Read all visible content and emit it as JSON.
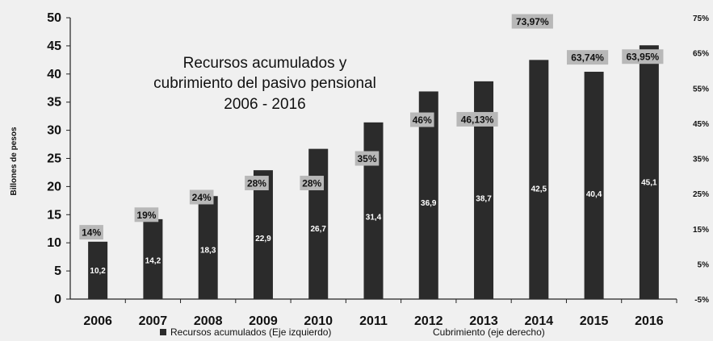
{
  "chart_data": {
    "type": "bar",
    "title_lines": [
      "Recursos acumulados y",
      "cubrimiento del pasivo pensional",
      "2006 - 2016"
    ],
    "ylabel": "Billones de pesos",
    "categories": [
      "2006",
      "2007",
      "2008",
      "2009",
      "2010",
      "2011",
      "2012",
      "2013",
      "2014",
      "2015",
      "2016"
    ],
    "series": [
      {
        "name": "Recursos acumulados (Eje izquierdo)",
        "axis": "left",
        "values": [
          10.2,
          14.2,
          18.3,
          22.9,
          26.7,
          31.4,
          36.9,
          38.7,
          42.5,
          40.4,
          45.1
        ],
        "labels": [
          "10,2",
          "14,2",
          "18,3",
          "22,9",
          "26,7",
          "31,4",
          "36,9",
          "38,7",
          "42,5",
          "40,4",
          "45,1"
        ],
        "color": "#2b2b2b"
      },
      {
        "name": "Cubrimiento (eje derecho)",
        "axis": "right",
        "values": [
          14,
          19,
          24,
          28,
          28,
          35,
          46,
          46.13,
          73.97,
          63.74,
          63.95
        ],
        "labels": [
          "14%",
          "19%",
          "24%",
          "28%",
          "28%",
          "35%",
          "46%",
          "46,13%",
          "73,97%",
          "63,74%",
          "63,95%"
        ],
        "color": "#b8b8b8"
      }
    ],
    "ylim_left": [
      0,
      50
    ],
    "ylim_right": [
      -5,
      75
    ],
    "yticks_left": [
      "0",
      "5",
      "10",
      "15",
      "20",
      "25",
      "30",
      "35",
      "40",
      "45",
      "50"
    ],
    "yticks_right": [
      "-5%",
      "5%",
      "15%",
      "25%",
      "35%",
      "45%",
      "55%",
      "65%",
      "75%"
    ],
    "legend_placement": "bottom",
    "grid": false
  }
}
